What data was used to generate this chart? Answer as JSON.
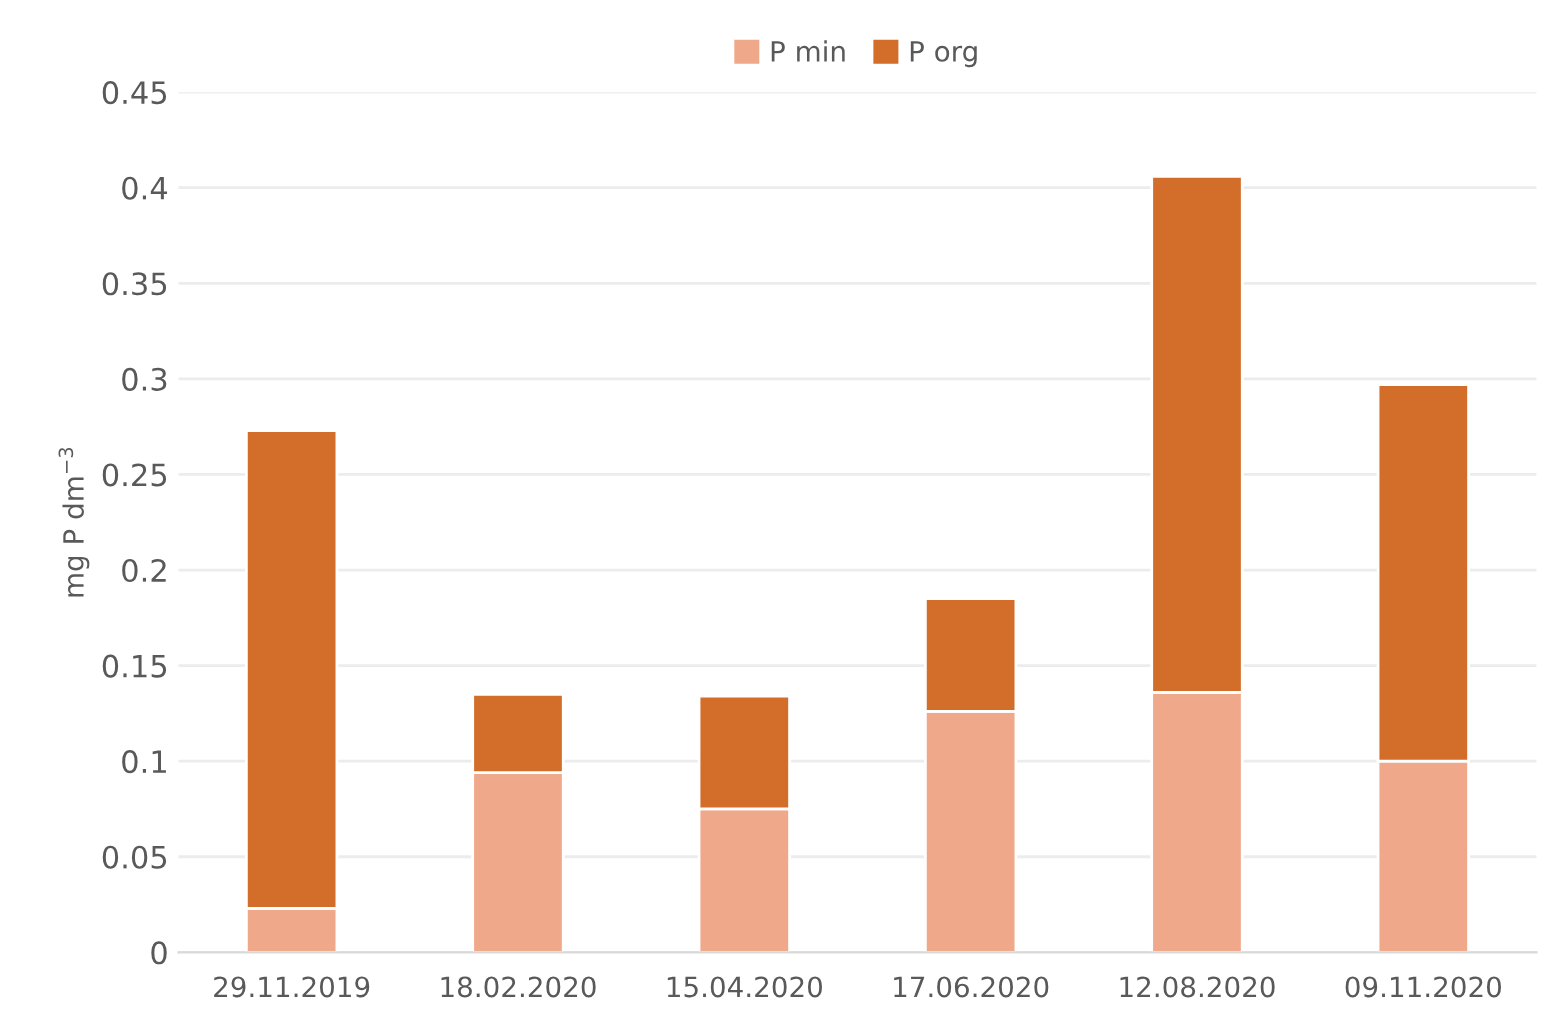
{
  "chart_data": {
    "type": "bar",
    "stacked": true,
    "ylabel": "mg P dm$^{−3}$",
    "categories": [
      "29.11.2019",
      "18.02.2020",
      "15.04.2020",
      "17.06.2020",
      "12.08.2020",
      "09.11.2020"
    ],
    "series": [
      {
        "name": "P min",
        "color": "#f0a88a",
        "values": [
          0.023,
          0.094,
          0.075,
          0.126,
          0.136,
          0.1
        ]
      },
      {
        "name": "P org",
        "color": "#d36e2a",
        "values": [
          0.25,
          0.041,
          0.059,
          0.059,
          0.27,
          0.197
        ]
      }
    ],
    "ylim": [
      0,
      0.45
    ],
    "yticks": [
      0,
      0.05,
      0.1,
      0.15,
      0.2,
      0.25,
      0.3,
      0.35,
      0.4,
      0.45
    ],
    "grid": "y",
    "legend": "top"
  }
}
